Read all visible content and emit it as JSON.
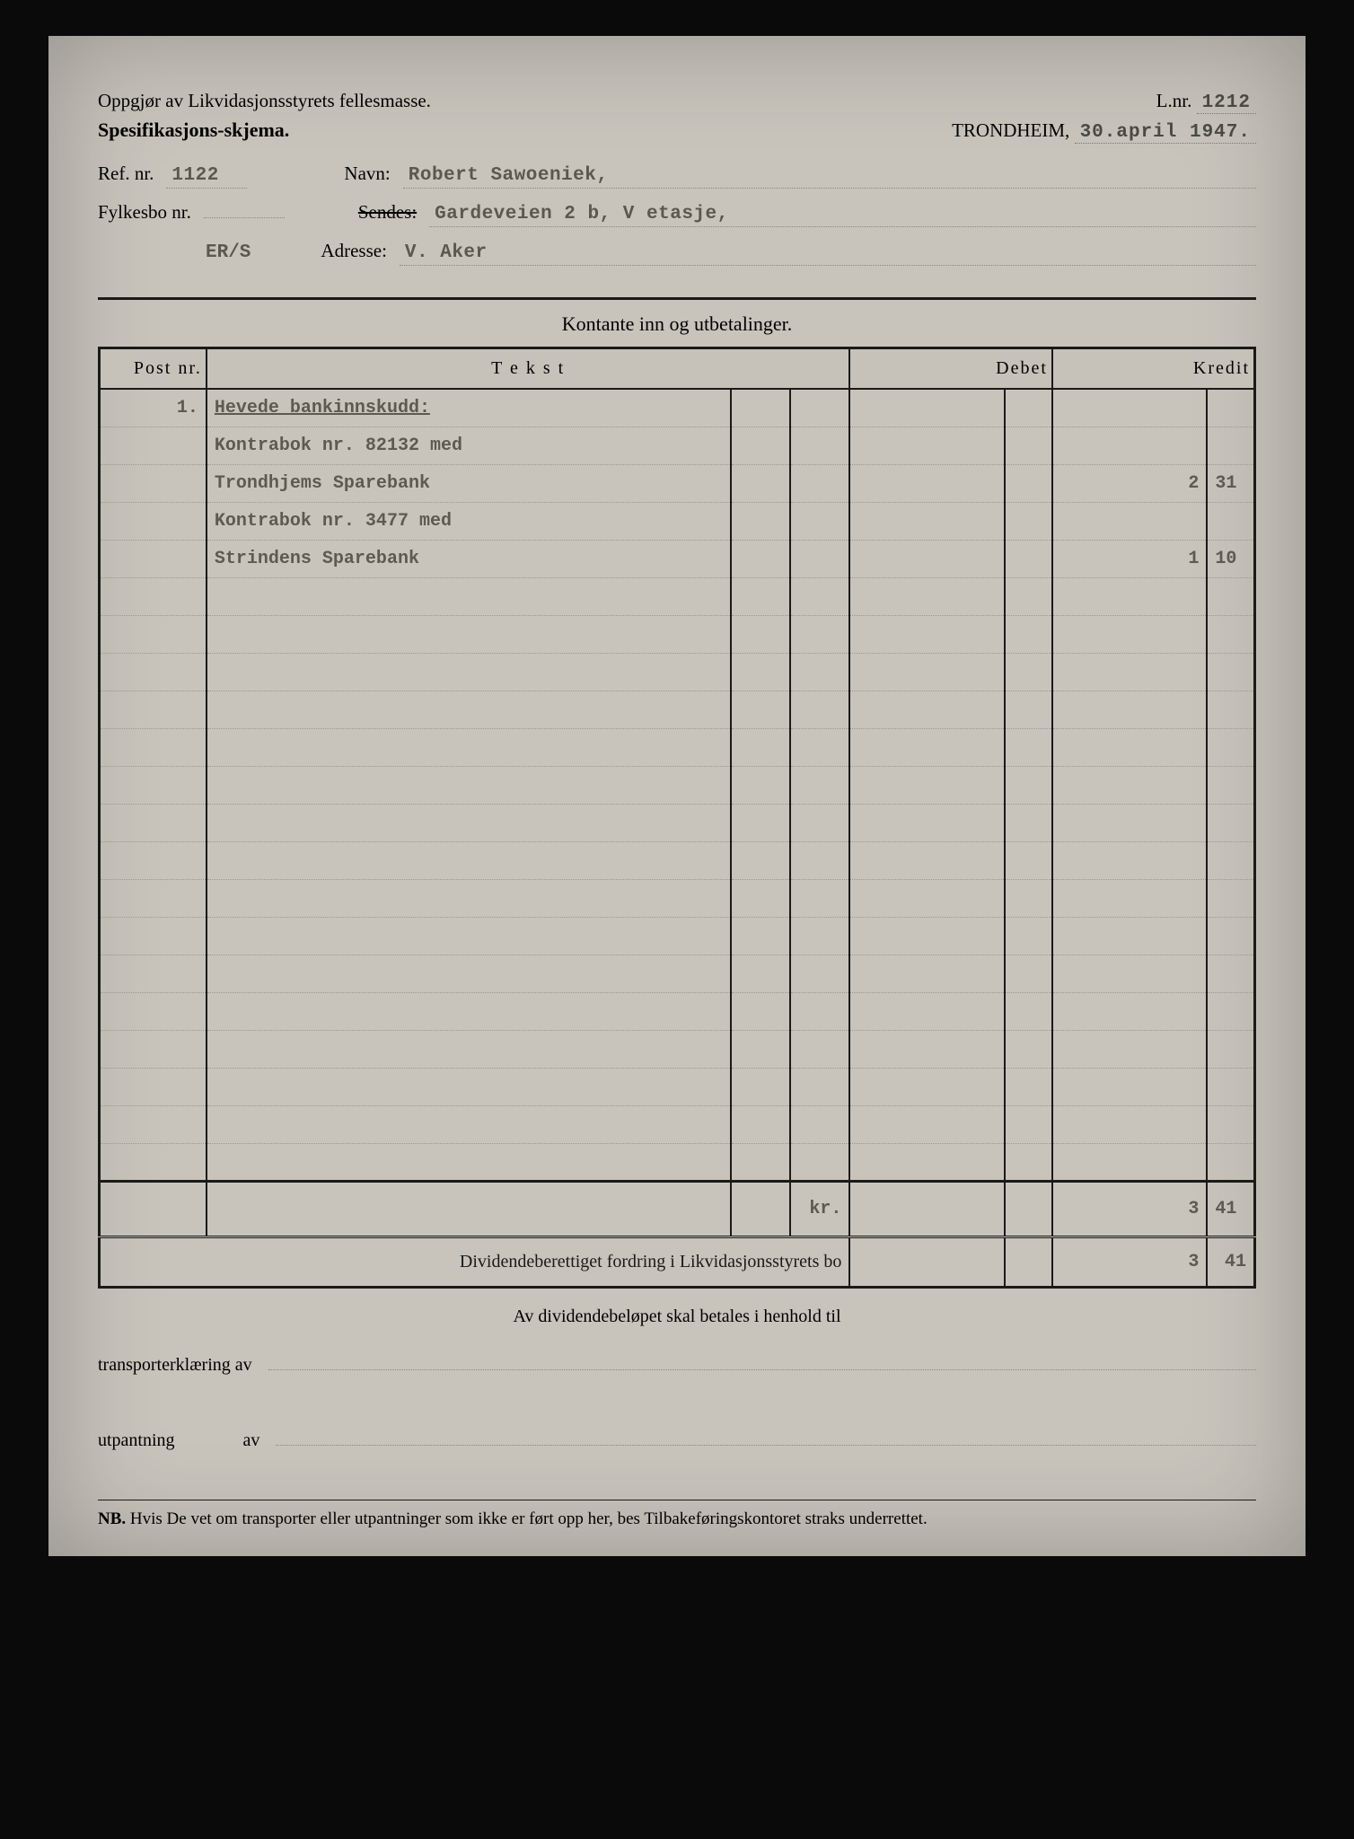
{
  "header": {
    "title1": "Oppgjør av Likvidasjonsstyrets fellesmasse.",
    "title2": "Spesifikasjons-skjema.",
    "lnr_label": "L.nr.",
    "lnr_value": "1212",
    "city": "TRONDHEIM,",
    "date": "30.april 1947."
  },
  "refs": {
    "ref_label": "Ref. nr.",
    "ref_value": "1122",
    "navn_label": "Navn:",
    "navn_value": "Robert Sawoeniek,",
    "fylkesbo_label": "Fylkesbo nr.",
    "fylkesbo_value": "",
    "sendes_label_struck": "Sendes:",
    "sendes_value": "Gardeveien 2 b, V etasje,",
    "adresse_label": "Adresse:",
    "adresse_value": "V. Aker",
    "initials": "ER/S"
  },
  "table": {
    "section_title": "Kontante inn og utbetalinger.",
    "headers": {
      "post": "Post nr.",
      "tekst": "T e k s t",
      "debet": "Debet",
      "kredit": "Kredit"
    },
    "rows": [
      {
        "post": "1.",
        "text": "Hevede bankinnskudd:",
        "underlined": true,
        "kredit_int": "",
        "kredit_dec": ""
      },
      {
        "post": "",
        "text": "Kontrabok nr. 82132 med",
        "kredit_int": "",
        "kredit_dec": ""
      },
      {
        "post": "",
        "text": "Trondhjems Sparebank",
        "kredit_int": "2",
        "kredit_dec": "31"
      },
      {
        "post": "",
        "text": "Kontrabok nr. 3477 med",
        "kredit_int": "",
        "kredit_dec": ""
      },
      {
        "post": "",
        "text": "Strindens Sparebank",
        "kredit_int": "1",
        "kredit_dec": "10"
      },
      {
        "post": "",
        "text": "",
        "kredit_int": "",
        "kredit_dec": ""
      },
      {
        "post": "",
        "text": "",
        "kredit_int": "",
        "kredit_dec": ""
      },
      {
        "post": "",
        "text": "",
        "kredit_int": "",
        "kredit_dec": ""
      },
      {
        "post": "",
        "text": "",
        "kredit_int": "",
        "kredit_dec": ""
      },
      {
        "post": "",
        "text": "",
        "kredit_int": "",
        "kredit_dec": ""
      },
      {
        "post": "",
        "text": "",
        "kredit_int": "",
        "kredit_dec": ""
      },
      {
        "post": "",
        "text": "",
        "kredit_int": "",
        "kredit_dec": ""
      },
      {
        "post": "",
        "text": "",
        "kredit_int": "",
        "kredit_dec": ""
      },
      {
        "post": "",
        "text": "",
        "kredit_int": "",
        "kredit_dec": ""
      },
      {
        "post": "",
        "text": "",
        "kredit_int": "",
        "kredit_dec": ""
      },
      {
        "post": "",
        "text": "",
        "kredit_int": "",
        "kredit_dec": ""
      },
      {
        "post": "",
        "text": "",
        "kredit_int": "",
        "kredit_dec": ""
      },
      {
        "post": "",
        "text": "",
        "kredit_int": "",
        "kredit_dec": ""
      },
      {
        "post": "",
        "text": "",
        "kredit_int": "",
        "kredit_dec": ""
      },
      {
        "post": "",
        "text": "",
        "kredit_int": "",
        "kredit_dec": ""
      },
      {
        "post": "",
        "text": "",
        "kredit_int": "",
        "kredit_dec": ""
      }
    ],
    "kr_label": "kr.",
    "total_kredit_int": "3",
    "total_kredit_dec": "41",
    "final_label": "Dividendeberettiget fordring i Likvidasjonsstyrets bo",
    "final_kredit_int": "3",
    "final_kredit_dec": "41"
  },
  "footer": {
    "center": "Av dividendebeløpet skal betales i henhold til",
    "transport_label": "transporterklæring av",
    "utpantning_label": "utpantning",
    "av": "av",
    "nb_prefix": "NB.",
    "nb_text": "Hvis De vet om transporter eller utpantninger som ikke er ført opp her, bes Tilbakeføringskontoret straks underrettet."
  },
  "colors": {
    "paper": "#c8c4bc",
    "ink": "#1a1a18",
    "typed": "#5c5a51"
  }
}
